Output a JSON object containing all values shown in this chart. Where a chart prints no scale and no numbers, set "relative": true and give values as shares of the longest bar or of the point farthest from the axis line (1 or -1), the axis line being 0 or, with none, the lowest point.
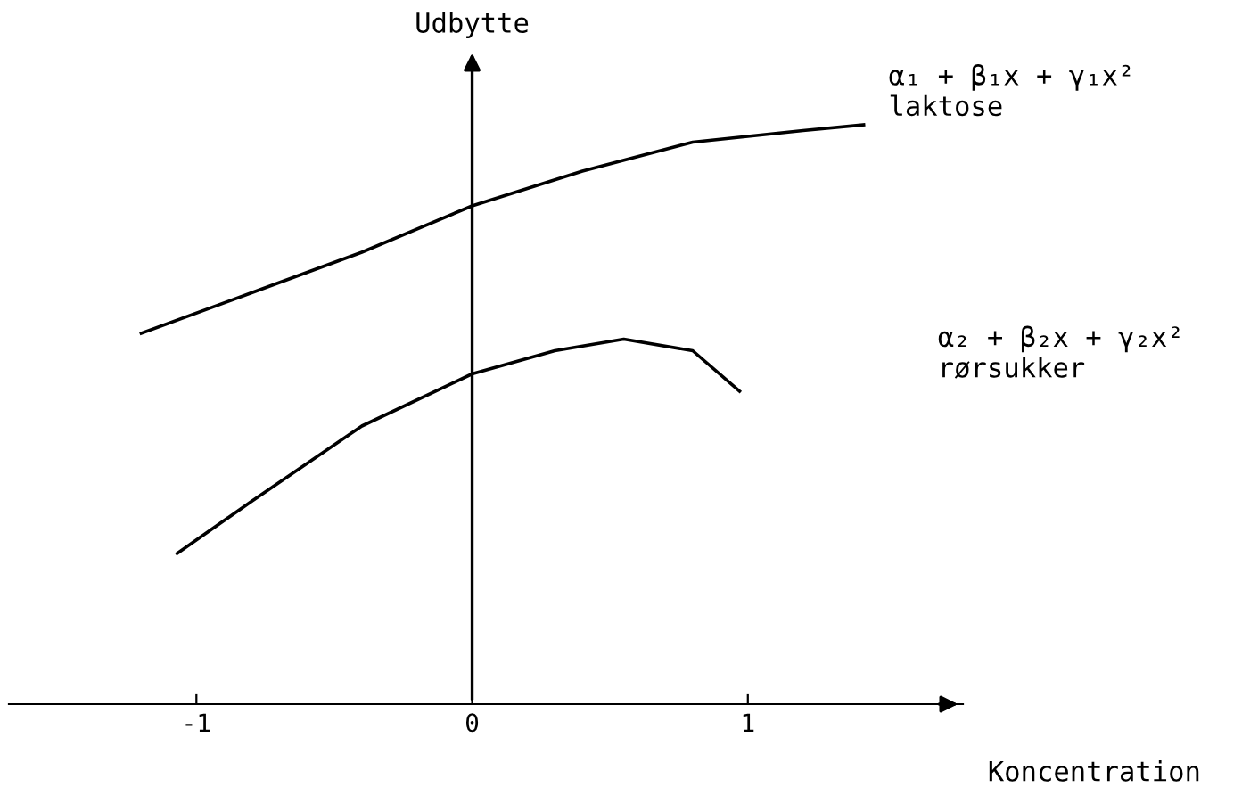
{
  "chart_data": {
    "type": "line",
    "relative": true,
    "xlabel": "Koncentration",
    "ylabel": "Udbytte",
    "xlim": [
      -1.68,
      1.78
    ],
    "xticks": [
      -1,
      0,
      1
    ],
    "legend": false,
    "marker": "none",
    "line_style": "solid",
    "series": [
      {
        "name": "α₁ + β₁x + γ₁x²\nlaktose",
        "color": "#000000",
        "x": [
          -1.2,
          -0.8,
          -0.4,
          0,
          0.4,
          0.8,
          1.2,
          1.42
        ],
        "values": [
          0.64,
          0.71,
          0.78,
          0.86,
          0.92,
          0.97,
          0.99,
          1.0
        ]
      },
      {
        "name": "α₂ + β₂x + γ₂x²\nrørsukker",
        "color": "#000000",
        "x": [
          -1.07,
          -0.8,
          -0.4,
          0,
          0.3,
          0.55,
          0.8,
          0.97
        ],
        "values": [
          0.26,
          0.35,
          0.48,
          0.57,
          0.61,
          0.63,
          0.61,
          0.54
        ]
      }
    ]
  }
}
